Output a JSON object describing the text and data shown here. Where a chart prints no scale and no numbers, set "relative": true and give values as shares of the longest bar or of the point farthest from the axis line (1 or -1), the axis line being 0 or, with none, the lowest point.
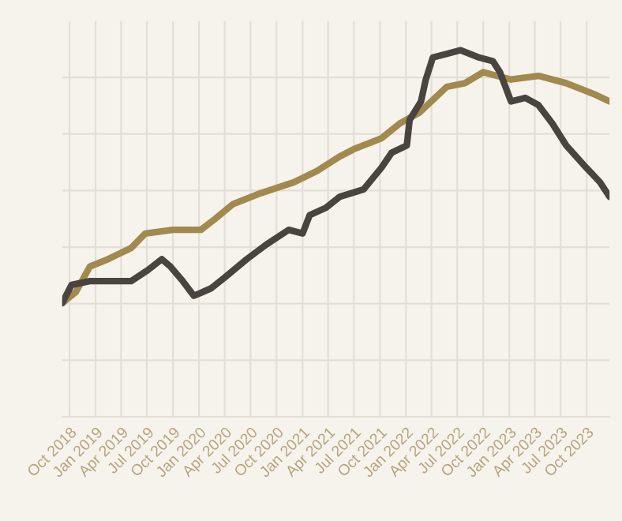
{
  "chart_data": {
    "type": "line",
    "relative": true,
    "grid": true,
    "xlim": [
      "2018-09-05",
      "2023-12-21"
    ],
    "xticks": [
      {
        "value": "2018-10-01",
        "label": "Oct 2018"
      },
      {
        "value": "2019-01-01",
        "label": "Jan 2019"
      },
      {
        "value": "2019-04-01",
        "label": "Apr 2019"
      },
      {
        "value": "2019-07-01",
        "label": "Jul 2019"
      },
      {
        "value": "2019-10-01",
        "label": "Oct 2019"
      },
      {
        "value": "2020-01-01",
        "label": "Jan 2020"
      },
      {
        "value": "2020-04-01",
        "label": "Apr 2020"
      },
      {
        "value": "2020-07-01",
        "label": "Jul 2020"
      },
      {
        "value": "2020-10-01",
        "label": "Oct 2020"
      },
      {
        "value": "2021-01-01",
        "label": "Jan 2021"
      },
      {
        "value": "2021-04-01",
        "label": "Apr 2021"
      },
      {
        "value": "2021-07-01",
        "label": "Jul 2021"
      },
      {
        "value": "2021-10-01",
        "label": "Oct 2021"
      },
      {
        "value": "2022-01-01",
        "label": "Jan 2022"
      },
      {
        "value": "2022-04-01",
        "label": "Apr 2022"
      },
      {
        "value": "2022-07-01",
        "label": "Jul 2022"
      },
      {
        "value": "2022-10-01",
        "label": "Oct 2022"
      },
      {
        "value": "2023-01-01",
        "label": "Jan 2023"
      },
      {
        "value": "2023-04-01",
        "label": "Apr 2023"
      },
      {
        "value": "2023-07-01",
        "label": "Jul 2023"
      },
      {
        "value": "2023-10-01",
        "label": "Oct 2023"
      }
    ],
    "series": [
      {
        "color": "#a2894e",
        "x": [
          "2018-09-05",
          "2018-10-23",
          "2018-12-12",
          "2019-02-14",
          "2019-05-06",
          "2019-06-25",
          "2019-10-01",
          "2020-01-08",
          "2020-02-27",
          "2020-04-30",
          "2020-08-06",
          "2020-12-02",
          "2021-02-20",
          "2021-05-12",
          "2021-07-01",
          "2021-10-07",
          "2021-12-10",
          "2022-02-18",
          "2022-05-25",
          "2022-07-28",
          "2022-10-01",
          "2023-01-07",
          "2023-04-14",
          "2023-07-21",
          "2023-10-28",
          "2023-12-21"
        ],
        "values": [
          0.31,
          0.34,
          0.41,
          0.43,
          0.46,
          0.5,
          0.51,
          0.51,
          0.54,
          0.58,
          0.61,
          0.64,
          0.67,
          0.71,
          0.73,
          0.76,
          0.8,
          0.83,
          0.9,
          0.91,
          0.94,
          0.92,
          0.93,
          0.91,
          0.88,
          0.86
        ]
      },
      {
        "color": "#4a4440",
        "x": [
          "2018-09-05",
          "2018-10-08",
          "2018-12-12",
          "2019-03-04",
          "2019-05-06",
          "2019-07-04",
          "2019-08-23",
          "2019-09-22",
          "2019-11-05",
          "2019-12-14",
          "2020-02-12",
          "2020-04-01",
          "2020-06-18",
          "2020-08-26",
          "2020-11-13",
          "2021-01-01",
          "2021-01-26",
          "2021-03-24",
          "2021-05-12",
          "2021-08-04",
          "2021-10-07",
          "2021-11-11",
          "2022-01-04",
          "2022-01-14",
          "2022-02-23",
          "2022-03-12",
          "2022-04-06",
          "2022-05-25",
          "2022-07-13",
          "2022-09-16",
          "2022-11-04",
          "2022-11-29",
          "2023-01-07",
          "2023-02-26",
          "2023-04-14",
          "2023-06-02",
          "2023-07-21",
          "2023-09-29",
          "2023-11-17",
          "2023-12-21"
        ],
        "values": [
          0.31,
          0.36,
          0.37,
          0.37,
          0.37,
          0.4,
          0.43,
          0.41,
          0.37,
          0.33,
          0.35,
          0.38,
          0.43,
          0.47,
          0.51,
          0.5,
          0.55,
          0.57,
          0.6,
          0.62,
          0.68,
          0.72,
          0.74,
          0.81,
          0.86,
          0.92,
          0.98,
          0.99,
          1,
          0.98,
          0.97,
          0.94,
          0.86,
          0.87,
          0.85,
          0.8,
          0.74,
          0.68,
          0.64,
          0.6
        ]
      }
    ]
  }
}
